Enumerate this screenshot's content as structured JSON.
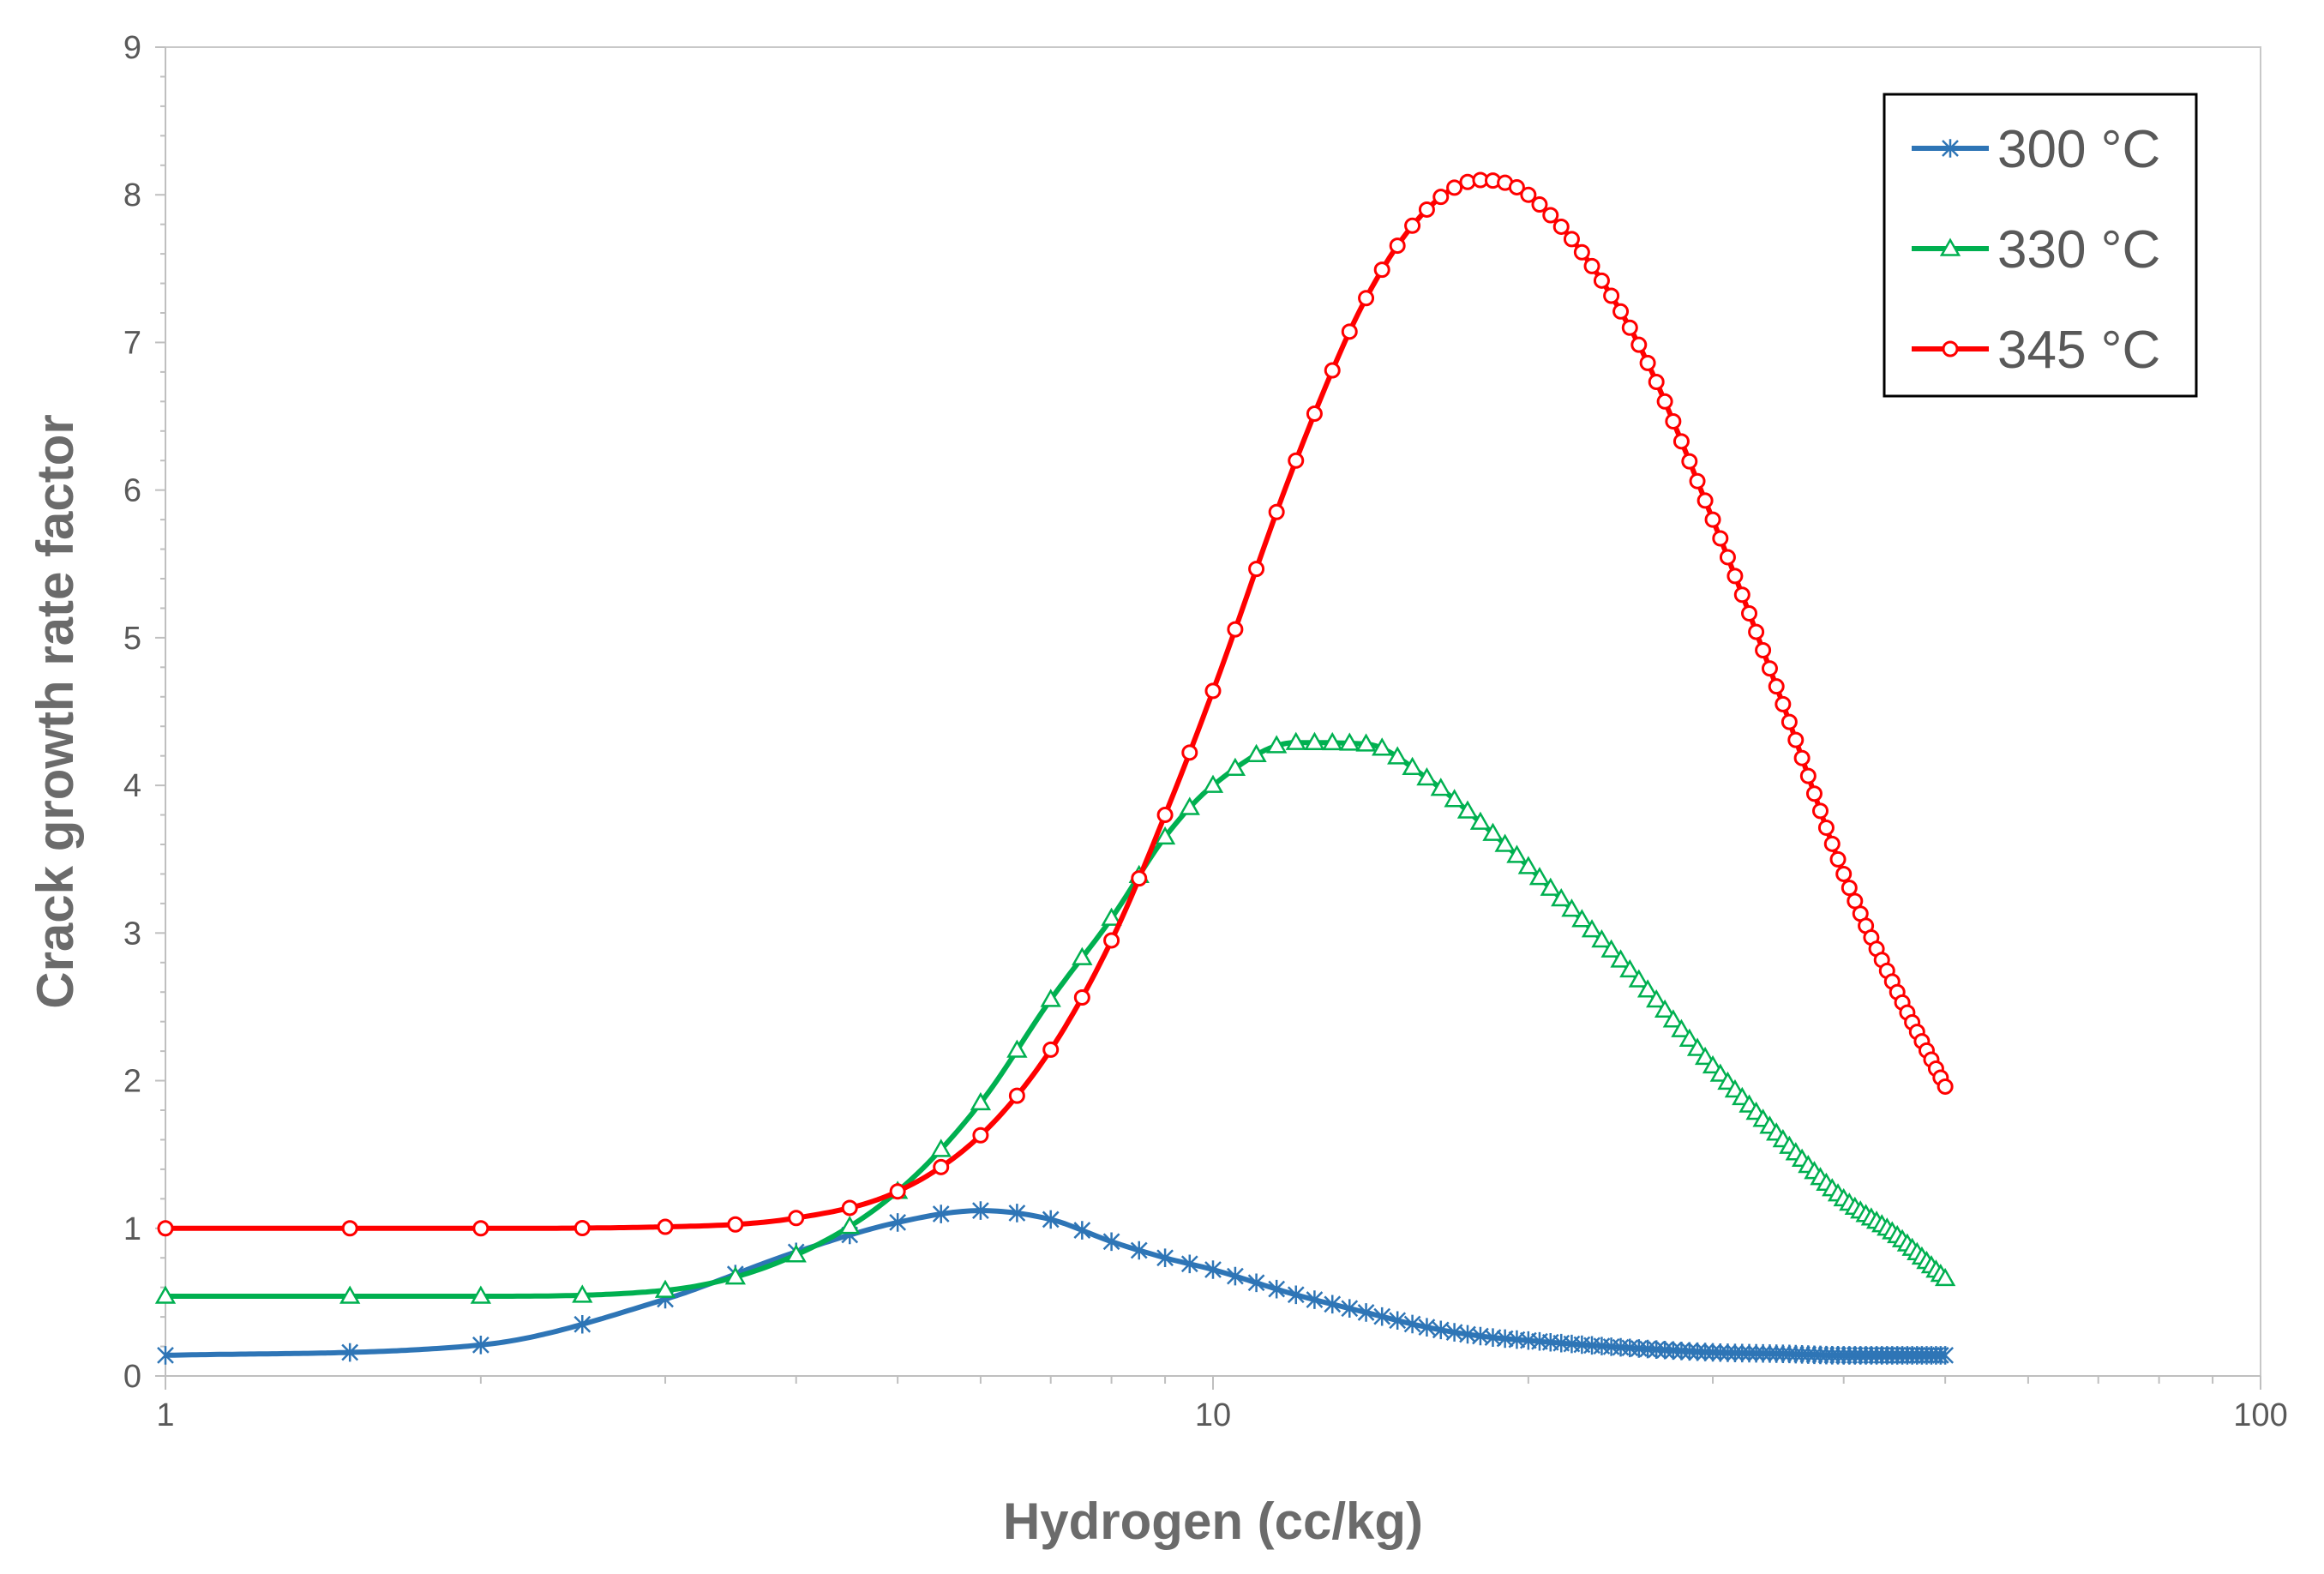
{
  "chart_data": {
    "type": "line",
    "title": "",
    "xlabel": "Hydrogen (cc/kg)",
    "ylabel": "Crack growth rate factor",
    "xscale": "log",
    "xlim": [
      1,
      100
    ],
    "ylim": [
      0,
      9
    ],
    "x_ticks": [
      1,
      10,
      100
    ],
    "x_tick_labels": [
      "1",
      "10",
      "100"
    ],
    "y_ticks": [
      0,
      1,
      2,
      3,
      4,
      5,
      6,
      7,
      8,
      9
    ],
    "y_tick_labels": [
      "0",
      "1",
      "2",
      "3",
      "4",
      "5",
      "6",
      "7",
      "8",
      "9"
    ],
    "grid": false,
    "legend_position": "top-right",
    "x_range": [
      1,
      50
    ],
    "sample_x": [
      1,
      2,
      3,
      4,
      5,
      6,
      7,
      8,
      9,
      10,
      12,
      14,
      16,
      18,
      20,
      25,
      30,
      35,
      40,
      45,
      50
    ],
    "series": [
      {
        "name": "300 °C",
        "color": "#2e75b6",
        "marker": "asterisk",
        "values": [
          0.14,
          0.21,
          0.52,
          0.84,
          1.04,
          1.12,
          1.06,
          0.91,
          0.8,
          0.72,
          0.55,
          0.43,
          0.33,
          0.27,
          0.24,
          0.19,
          0.16,
          0.15,
          0.14,
          0.14,
          0.14
        ]
      },
      {
        "name": "330 °C",
        "color": "#00b050",
        "marker": "triangle",
        "values": [
          0.54,
          0.54,
          0.58,
          0.82,
          1.25,
          1.85,
          2.55,
          3.1,
          3.65,
          4.0,
          4.29,
          4.28,
          4.05,
          3.75,
          3.45,
          2.75,
          2.1,
          1.6,
          1.2,
          0.95,
          0.66
        ]
      },
      {
        "name": "345 °C",
        "color": "#ff0000",
        "marker": "circle",
        "values": [
          1.0,
          1.0,
          1.01,
          1.07,
          1.25,
          1.63,
          2.21,
          2.95,
          3.8,
          4.64,
          6.2,
          7.3,
          7.9,
          8.1,
          8.0,
          7.1,
          5.8,
          4.55,
          3.4,
          2.6,
          1.96
        ]
      }
    ]
  }
}
